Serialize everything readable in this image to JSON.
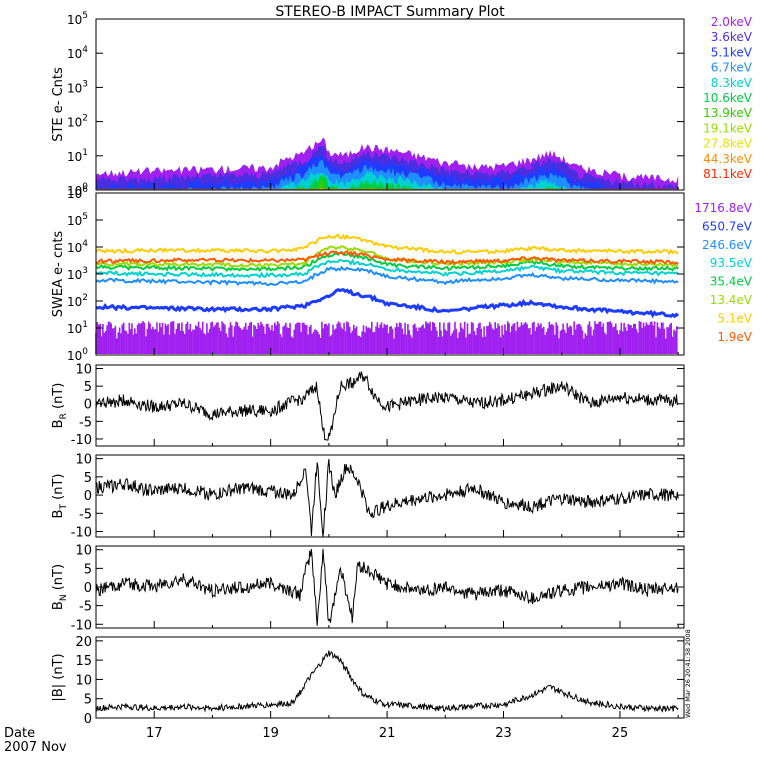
{
  "title": "STEREO-B IMPACT Summary Plot",
  "footer": {
    "date_label": "Date",
    "month_label": "2007 Nov",
    "stamp": "Wed Mar 26 20:41:38 2008"
  },
  "colors": {
    "axis": "#000000",
    "trace": "#000000"
  },
  "chart_data": [
    {
      "type": "area",
      "panel": "ste",
      "ylabel": "STE e- Cnts",
      "yscale": "log",
      "ylim": [
        1,
        100000
      ],
      "yticks": [
        1,
        10,
        100,
        1000,
        10000,
        100000
      ],
      "ytick_labels": [
        "10^0",
        "10^1",
        "10^2",
        "10^3",
        "10^4",
        "10^5"
      ],
      "legend": [
        {
          "label": "2.0keV",
          "color": "#a020f0"
        },
        {
          "label": "3.6keV",
          "color": "#4b2ee0"
        },
        {
          "label": "5.1keV",
          "color": "#1e3cff"
        },
        {
          "label": "6.7keV",
          "color": "#1f8fff"
        },
        {
          "label": "8.3keV",
          "color": "#00d2d2"
        },
        {
          "label": "10.6keV",
          "color": "#00cc44"
        },
        {
          "label": "13.9keV",
          "color": "#33cc00"
        },
        {
          "label": "19.1keV",
          "color": "#99dd00"
        },
        {
          "label": "27.8keV",
          "color": "#e6e600"
        },
        {
          "label": "44.3keV",
          "color": "#ff8c00"
        },
        {
          "label": "81.1keV",
          "color": "#ff2a00"
        }
      ],
      "x": [
        16.0,
        17.0,
        18.0,
        19.0,
        19.6,
        19.9,
        20.0,
        20.3,
        20.6,
        21.0,
        21.5,
        22.0,
        22.5,
        23.0,
        23.5,
        23.8,
        24.2,
        24.5,
        25.0,
        25.5,
        26.0
      ],
      "series": [
        {
          "values": [
            3,
            3.5,
            4,
            4.5,
            12,
            28,
            12,
            10,
            18,
            15,
            10,
            6,
            4.5,
            5,
            8,
            12,
            5,
            3.5,
            2.5,
            2.2,
            2
          ]
        }
      ]
    },
    {
      "type": "line",
      "panel": "swea",
      "ylabel": "SWEA e- cnts",
      "yscale": "log",
      "ylim": [
        1,
        1000000
      ],
      "yticks": [
        1,
        10,
        100,
        1000,
        10000,
        100000,
        1000000
      ],
      "ytick_labels": [
        "10^0",
        "10^1",
        "10^2",
        "10^3",
        "10^4",
        "10^5",
        "10^6"
      ],
      "legend": [
        {
          "label": "1716.8eV",
          "color": "#a020f0"
        },
        {
          "label": "650.7eV",
          "color": "#1e3cff"
        },
        {
          "label": "246.6eV",
          "color": "#1f8fff"
        },
        {
          "label": "93.5eV",
          "color": "#00d2d2"
        },
        {
          "label": "35.4eV",
          "color": "#00cc44"
        },
        {
          "label": "13.4eV",
          "color": "#99dd00"
        },
        {
          "label": "5.1eV",
          "color": "#ffcc00"
        },
        {
          "label": "1.9eV",
          "color": "#ff5a00"
        }
      ],
      "x": [
        16.0,
        17.0,
        18.0,
        19.0,
        19.6,
        20.0,
        20.2,
        20.5,
        21.0,
        22.0,
        23.0,
        23.5,
        24.0,
        25.0,
        26.0
      ],
      "series": [
        {
          "name": "1716.8eV",
          "values": [
            10,
            10,
            10,
            10,
            10,
            10,
            10,
            10,
            10,
            10,
            10,
            10,
            10,
            10,
            10
          ]
        },
        {
          "name": "650.7eV",
          "values": [
            60,
            55,
            50,
            50,
            70,
            150,
            250,
            180,
            80,
            40,
            70,
            90,
            60,
            40,
            30
          ]
        },
        {
          "name": "246.6eV",
          "values": [
            600,
            550,
            500,
            450,
            500,
            1500,
            1600,
            1500,
            800,
            500,
            700,
            900,
            700,
            600,
            500
          ]
        },
        {
          "name": "93.5eV",
          "values": [
            1100,
            1000,
            950,
            900,
            1000,
            2800,
            3000,
            2600,
            1500,
            1000,
            1300,
            1800,
            1300,
            1100,
            1000
          ]
        },
        {
          "name": "35.4eV",
          "values": [
            1800,
            1700,
            1600,
            1500,
            1800,
            5000,
            6000,
            4500,
            2200,
            1600,
            2000,
            2800,
            2000,
            1700,
            1600
          ]
        },
        {
          "name": "13.4eV",
          "values": [
            2400,
            2300,
            2200,
            2100,
            2500,
            9000,
            10000,
            8000,
            3500,
            2400,
            2800,
            3500,
            2800,
            2400,
            2200
          ]
        },
        {
          "name": "5.1eV",
          "values": [
            7000,
            7500,
            7500,
            7000,
            9000,
            25000,
            25000,
            20000,
            10000,
            6500,
            7000,
            9000,
            7500,
            7000,
            6500
          ]
        },
        {
          "name": "1.9eV",
          "values": [
            3000,
            3200,
            3300,
            3200,
            3500,
            6000,
            6500,
            5500,
            3500,
            2800,
            3200,
            4000,
            3200,
            3000,
            2800
          ]
        }
      ]
    },
    {
      "type": "line",
      "panel": "br",
      "ylabel": "B_R (nT)",
      "ylabel_main": "B",
      "ylabel_sub": "R",
      "ylabel_unit": "(nT)",
      "ylim": [
        -12,
        11
      ],
      "yticks": [
        -10,
        -5,
        0,
        5,
        10
      ],
      "x": [
        16.0,
        16.5,
        17.0,
        17.5,
        18.0,
        18.5,
        19.0,
        19.3,
        19.6,
        19.8,
        19.9,
        20.0,
        20.2,
        20.4,
        20.6,
        20.8,
        21.0,
        21.5,
        22.0,
        22.5,
        23.0,
        23.5,
        24.0,
        24.5,
        25.0,
        25.5,
        26.0
      ],
      "series": [
        {
          "values": [
            0,
            1,
            -1,
            0,
            -3,
            -2,
            -2,
            0,
            2,
            5,
            -8,
            -10,
            5,
            6,
            8,
            2,
            -1,
            1,
            2,
            0,
            1,
            3,
            5,
            0,
            2,
            1,
            1
          ]
        }
      ]
    },
    {
      "type": "line",
      "panel": "bt",
      "ylabel": "B_T (nT)",
      "ylabel_main": "B",
      "ylabel_sub": "T",
      "ylabel_unit": "(nT)",
      "ylim": [
        -11.5,
        11
      ],
      "yticks": [
        -10,
        -5,
        0,
        5,
        10
      ],
      "x": [
        16.0,
        16.5,
        17.0,
        17.5,
        18.0,
        18.5,
        19.0,
        19.4,
        19.6,
        19.7,
        19.8,
        19.9,
        20.0,
        20.1,
        20.3,
        20.5,
        20.7,
        21.0,
        21.5,
        22.0,
        22.5,
        23.0,
        23.5,
        24.0,
        24.5,
        25.0,
        25.5,
        26.0
      ],
      "series": [
        {
          "values": [
            2,
            3,
            1,
            2,
            0,
            2,
            1,
            0,
            8,
            -10,
            10,
            -11,
            9,
            0,
            8,
            4,
            -5,
            -3,
            -1,
            0,
            2,
            -2,
            -3,
            -1,
            -2,
            -1,
            0,
            0
          ]
        }
      ]
    },
    {
      "type": "line",
      "panel": "bn",
      "ylabel": "B_N (nT)",
      "ylabel_main": "B",
      "ylabel_sub": "N",
      "ylabel_unit": "(nT)",
      "ylim": [
        -11,
        11
      ],
      "yticks": [
        -10,
        -5,
        0,
        5,
        10
      ],
      "x": [
        16.0,
        16.5,
        17.0,
        17.5,
        18.0,
        18.5,
        19.0,
        19.5,
        19.7,
        19.8,
        19.9,
        20.0,
        20.2,
        20.4,
        20.5,
        21.0,
        21.5,
        22.0,
        22.5,
        23.0,
        23.5,
        24.0,
        24.5,
        25.0,
        25.5,
        26.0
      ],
      "series": [
        {
          "values": [
            -1,
            1,
            0,
            2,
            -1,
            0,
            1,
            -2,
            10,
            -10,
            10,
            -10,
            5,
            -8,
            6,
            1,
            -1,
            0,
            -2,
            -1,
            -3,
            -1,
            0,
            1,
            -1,
            0
          ]
        }
      ]
    },
    {
      "type": "line",
      "panel": "bmag",
      "ylabel": "|B| (nT)",
      "ylim": [
        0,
        21
      ],
      "yticks": [
        0,
        5,
        10,
        15,
        20
      ],
      "x": [
        16.0,
        16.5,
        17.0,
        17.5,
        18.0,
        18.5,
        19.0,
        19.4,
        19.6,
        19.8,
        20.0,
        20.2,
        20.4,
        20.6,
        20.8,
        21.0,
        21.5,
        22.0,
        22.5,
        23.0,
        23.5,
        23.8,
        24.2,
        24.5,
        25.0,
        25.5,
        26.0
      ],
      "series": [
        {
          "values": [
            2.5,
            3,
            2.5,
            3,
            2.5,
            3,
            3.5,
            4,
            9,
            13,
            17,
            15,
            10,
            6,
            4.5,
            3.5,
            3,
            2.5,
            3,
            3.5,
            6,
            8,
            5.5,
            4,
            3,
            2.5,
            2.5
          ]
        }
      ]
    },
    {
      "panel": "time-axis",
      "xlim": [
        16.0,
        26.1
      ],
      "xticks": [
        17,
        19,
        21,
        23,
        25
      ],
      "xtick_labels": [
        "17",
        "19",
        "21",
        "23",
        "25"
      ]
    }
  ]
}
